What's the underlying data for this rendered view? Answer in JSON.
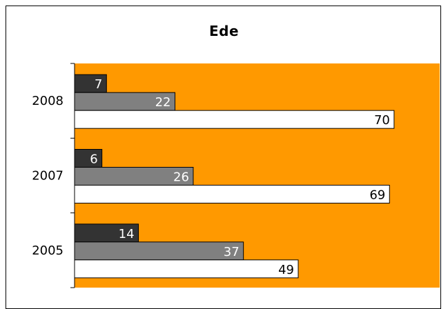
{
  "chart_data": {
    "type": "bar",
    "orientation": "horizontal",
    "title": "Ede",
    "categories": [
      "2008",
      "2007",
      "2005"
    ],
    "series": [
      {
        "values": [
          7,
          6,
          14
        ],
        "color": "#333333",
        "label_color": "#ffffff"
      },
      {
        "values": [
          22,
          26,
          37
        ],
        "color": "#808080",
        "label_color": "#ffffff"
      },
      {
        "values": [
          70,
          69,
          49
        ],
        "color": "#ffffff",
        "label_color": "#000000"
      }
    ],
    "xlim": [
      0,
      80
    ],
    "plot_background": "#ff9900",
    "grid": false,
    "legend": "none"
  }
}
